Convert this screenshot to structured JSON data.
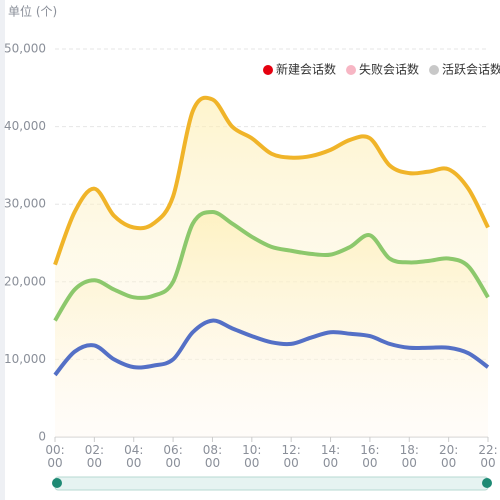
{
  "chart_data": {
    "type": "line",
    "y_axis_label": "单位 (个)",
    "categories": [
      "00:00",
      null,
      "02:00",
      null,
      "04:00",
      null,
      "06:00",
      null,
      "08:00",
      null,
      "10:00",
      null,
      "12:00",
      null,
      "14:00",
      null,
      "16:00",
      null,
      "18:00",
      null,
      "20:00",
      null,
      "22:00"
    ],
    "series": [
      {
        "name": "新建会话数",
        "legend_color": "#e5000f",
        "color": "#f0b429",
        "values": [
          22200,
          29000,
          32000,
          28500,
          27000,
          27500,
          31000,
          42000,
          43500,
          40000,
          38500,
          36500,
          36000,
          36200,
          37000,
          38300,
          38500,
          35000,
          34000,
          34200,
          34500,
          32000,
          27000
        ]
      },
      {
        "name": "失败会话数",
        "legend_color": "#f7b6c4",
        "color": "#8cc86c",
        "values": [
          15000,
          19000,
          20200,
          19000,
          18000,
          18200,
          20000,
          27500,
          29000,
          27500,
          25800,
          24500,
          24000,
          23600,
          23500,
          24500,
          26000,
          23000,
          22500,
          22700,
          23000,
          22000,
          18000
        ]
      },
      {
        "name": "活跃会话数",
        "legend_color": "#c8c8c8",
        "color": "#5470c6",
        "values": [
          8000,
          11000,
          11800,
          10000,
          9000,
          9200,
          10000,
          13500,
          15000,
          14000,
          13000,
          12200,
          12000,
          12800,
          13500,
          13300,
          13000,
          12000,
          11500,
          11500,
          11500,
          10800,
          9000
        ]
      }
    ],
    "ylim": [
      0,
      50000
    ],
    "yticks": [
      0,
      {
        "value": 10000,
        "label": "10,000"
      },
      {
        "value": 20000,
        "label": "20,000"
      },
      {
        "value": 30000,
        "label": "30,000"
      },
      {
        "value": 40000,
        "label": "40,000"
      },
      {
        "value": 50000,
        "label": "50,000"
      }
    ],
    "grid": true,
    "legend": "top-right"
  }
}
